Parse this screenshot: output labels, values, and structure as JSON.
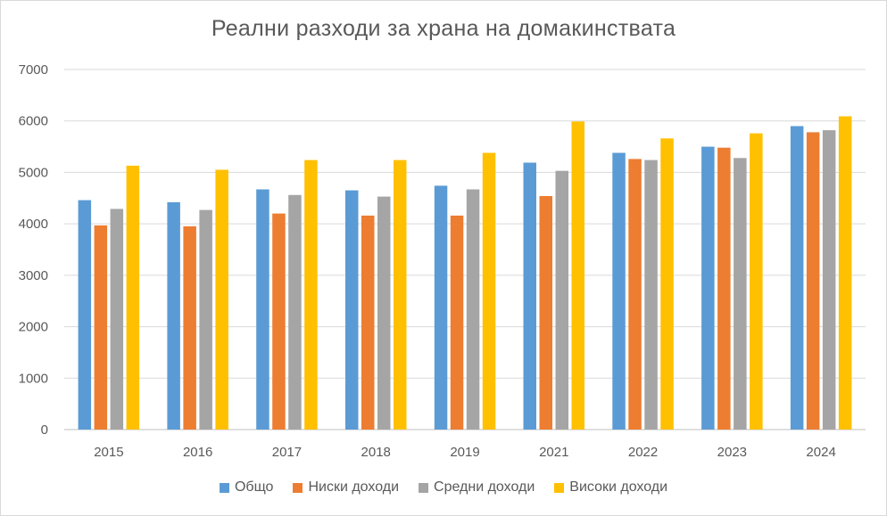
{
  "chart_data": {
    "type": "bar",
    "title": "Реални разходи за храна на домакинствата",
    "categories": [
      "2015",
      "2016",
      "2017",
      "2018",
      "2019",
      "2021",
      "2022",
      "2023",
      "2024"
    ],
    "series": [
      {
        "name": "Общо",
        "color": "#5b9bd5",
        "values": [
          4460,
          4420,
          4670,
          4650,
          4740,
          5190,
          5380,
          5500,
          5900
        ]
      },
      {
        "name": "Ниски доходи",
        "color": "#ed7d31",
        "values": [
          3970,
          3950,
          4200,
          4160,
          4160,
          4540,
          5260,
          5480,
          5780
        ]
      },
      {
        "name": "Средни доходи",
        "color": "#a5a5a5",
        "values": [
          4290,
          4270,
          4560,
          4530,
          4670,
          5030,
          5240,
          5280,
          5820
        ]
      },
      {
        "name": "Високи доходи",
        "color": "#ffc000",
        "values": [
          5130,
          5050,
          5240,
          5240,
          5380,
          5990,
          5660,
          5760,
          6090
        ]
      }
    ],
    "ylim": [
      0,
      7000
    ],
    "yticks": [
      "0",
      "1000",
      "2000",
      "3000",
      "4000",
      "5000",
      "6000",
      "7000"
    ],
    "grid": true,
    "legend_position": "bottom"
  }
}
